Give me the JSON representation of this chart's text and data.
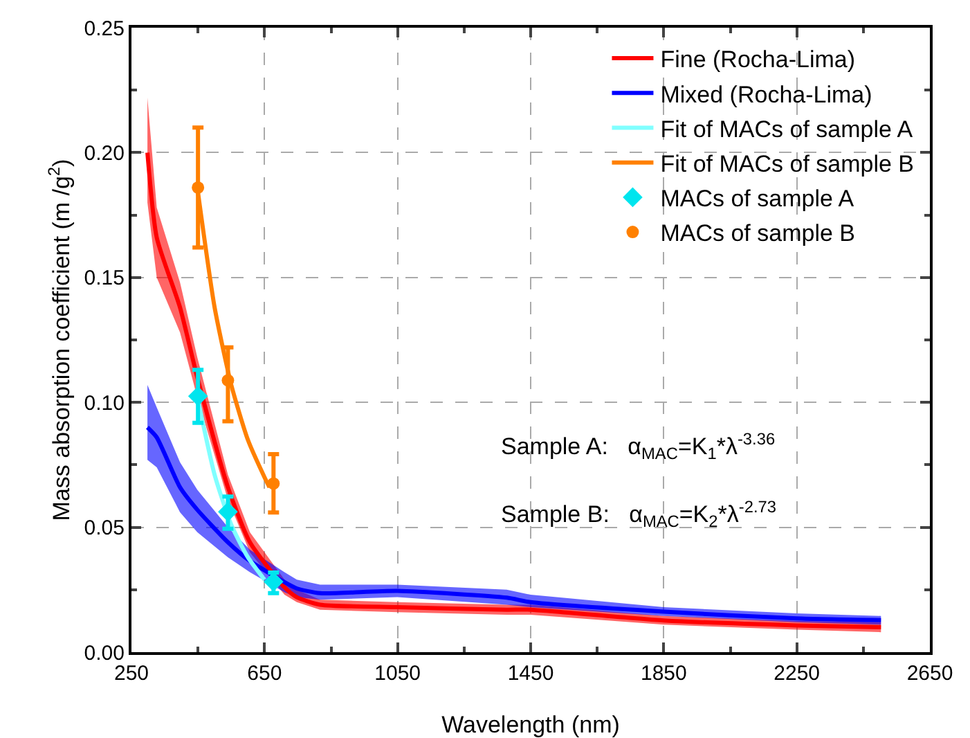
{
  "chart_data": {
    "type": "line",
    "xlabel": "Wavelength (nm)",
    "ylabel": "Mass absorption coefficient (m /g$^{2}$)",
    "xlim": [
      250,
      2650
    ],
    "xticks": [
      250,
      650,
      1050,
      1450,
      1850,
      2250,
      2650
    ],
    "ylim": [
      0,
      0.25
    ],
    "yticks": [
      {
        "value": 0,
        "label": "0.00"
      },
      {
        "value": 0.05,
        "label": "0.05"
      },
      {
        "value": 0.1,
        "label": "0.10"
      },
      {
        "value": 0.15,
        "label": "0.15"
      },
      {
        "value": 0.2,
        "label": "0.20"
      },
      {
        "value": 0.25,
        "label": "0.25"
      }
    ],
    "grid": true,
    "legend": "top right",
    "line_style": "solid",
    "series": [
      {
        "name": "Fine (Rocha-Lima)",
        "color": "#ff0000",
        "x": [
          298,
          326,
          396,
          448,
          540,
          606,
          710,
          747,
          817,
          1049,
          1378,
          1450,
          1850,
          2250,
          2503
        ],
        "values": [
          0.2,
          0.166,
          0.138,
          0.11,
          0.066,
          0.044,
          0.026,
          0.022,
          0.019,
          0.018,
          0.017,
          0.017,
          0.0127,
          0.0107,
          0.01
        ],
        "lower": [
          0.18,
          0.15,
          0.128,
          0.102,
          0.061,
          0.04,
          0.023,
          0.02,
          0.017,
          0.016,
          0.015,
          0.015,
          0.011,
          0.009,
          0.008
        ],
        "upper": [
          0.222,
          0.178,
          0.148,
          0.118,
          0.071,
          0.048,
          0.029,
          0.025,
          0.021,
          0.02,
          0.019,
          0.019,
          0.0145,
          0.0125,
          0.012
        ]
      },
      {
        "name": "Mixed (Rocha-Lima)",
        "color": "#0000ff",
        "x": [
          298,
          326,
          396,
          448,
          540,
          606,
          710,
          747,
          817,
          1049,
          1378,
          1450,
          1850,
          2250,
          2503
        ],
        "values": [
          0.09,
          0.086,
          0.066,
          0.057,
          0.044,
          0.0365,
          0.028,
          0.0255,
          0.0236,
          0.0245,
          0.0218,
          0.02,
          0.0162,
          0.0135,
          0.0128
        ],
        "lower": [
          0.077,
          0.074,
          0.056,
          0.048,
          0.038,
          0.032,
          0.024,
          0.022,
          0.021,
          0.022,
          0.019,
          0.018,
          0.0145,
          0.012,
          0.011
        ],
        "upper": [
          0.107,
          0.098,
          0.076,
          0.065,
          0.05,
          0.041,
          0.032,
          0.029,
          0.027,
          0.027,
          0.025,
          0.023,
          0.018,
          0.0155,
          0.0145
        ]
      },
      {
        "name": "MACs of sample A",
        "type": "scatter",
        "marker": "diamond",
        "color": "#00e5ee",
        "x": [
          450,
          540,
          677
        ],
        "values": [
          0.1025,
          0.0562,
          0.0282
        ],
        "errors": [
          [
            0.0918,
            0.113
          ],
          [
            0.0494,
            0.0623
          ],
          [
            0.0236,
            0.0319
          ]
        ]
      },
      {
        "name": "MACs of sample B",
        "type": "scatter",
        "marker": "circle",
        "color": "#ff8000",
        "x": [
          450,
          540,
          677
        ],
        "values": [
          0.186,
          0.1088,
          0.0675
        ],
        "errors": [
          [
            0.162,
            0.21
          ],
          [
            0.0924,
            0.122
          ],
          [
            0.0559,
            0.0793
          ]
        ]
      },
      {
        "name": "Fit of MACs of sample A",
        "type": "line",
        "color": "#80ffff",
        "x": [
          450,
          500,
          550,
          600,
          650
        ],
        "values": [
          0.101,
          0.071,
          0.051,
          0.038,
          0.029
        ]
      },
      {
        "name": "Fit of MACs of sample B",
        "type": "line",
        "color": "#ff8000",
        "x": [
          450,
          500,
          550,
          600,
          650,
          665
        ],
        "values": [
          0.184,
          0.138,
          0.107,
          0.085,
          0.07,
          0.066
        ]
      }
    ],
    "annotations": [
      "Sample A:   α$_{MAC}$=K$_{1}$*λ$^{-3.36}$",
      "Sample B:   α$_{MAC}$=K$_{2}$*λ$^{-2.73}$"
    ]
  }
}
